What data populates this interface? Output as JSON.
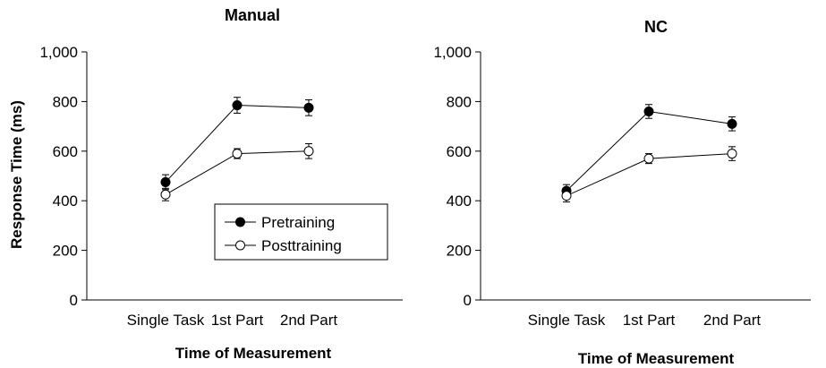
{
  "chart_data": [
    {
      "type": "line",
      "title": "Manual",
      "xlabel": "Time of Measurement",
      "ylabel": "Response Time (ms)",
      "categories": [
        "Single Task",
        "1st Part",
        "2nd Part"
      ],
      "ylim": [
        0,
        1000
      ],
      "yticks": [
        "0",
        "200",
        "400",
        "600",
        "800",
        "1,000"
      ],
      "series": [
        {
          "name": "Pretraining",
          "marker": "filled-circle",
          "values": [
            475,
            785,
            775
          ],
          "errors": [
            30,
            32,
            32
          ]
        },
        {
          "name": "Posttraining",
          "marker": "open-circle",
          "values": [
            425,
            590,
            600
          ],
          "errors": [
            25,
            20,
            30
          ]
        }
      ],
      "legend": {
        "position": "bottom-right"
      },
      "grid": false
    },
    {
      "type": "line",
      "title": "NC",
      "xlabel": "Time of Measurement",
      "ylabel": "",
      "categories": [
        "Single Task",
        "1st Part",
        "2nd Part"
      ],
      "ylim": [
        0,
        1000
      ],
      "yticks": [
        "0",
        "200",
        "400",
        "600",
        "800",
        "1,000"
      ],
      "series": [
        {
          "name": "Pretraining",
          "marker": "filled-circle",
          "values": [
            440,
            760,
            710
          ],
          "errors": [
            25,
            28,
            28
          ]
        },
        {
          "name": "Posttraining",
          "marker": "open-circle",
          "values": [
            420,
            570,
            590
          ],
          "errors": [
            25,
            20,
            28
          ]
        }
      ],
      "grid": false
    }
  ],
  "colors": {
    "line": "#000000",
    "open_marker_fill": "#ffffff",
    "filled_marker": "#000000"
  }
}
